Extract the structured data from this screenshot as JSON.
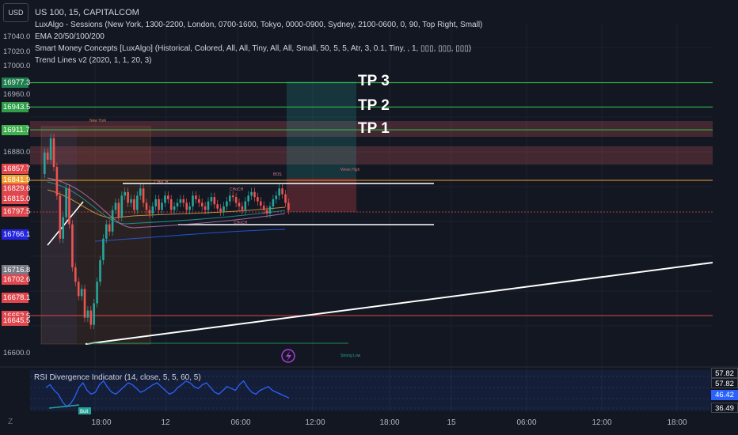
{
  "toolbar": {
    "currency": "USD"
  },
  "legend": {
    "symbol": "US 100, 15, CAPITALCOM",
    "indicators": [
      "LuxAlgo - Sessions (New York, 1300-2200, London, 0700-1600, Tokyo, 0000-0900, Sydney, 2100-0600, 0, 90, Top Right, Small)",
      "EMA 20/50/100/200",
      "Smart Money Concepts [LuxAlgo] (Historical, Colored, All, All, Tiny, All, All, Small, 50, 5, 5, Atr, 3, 0.1, Tiny, , 1, ▯▯▯, ▯▯▯, ▯▯▯)",
      "Trend Lines v2 (2020, 1, 1, 20, 3)"
    ]
  },
  "price_axis": {
    "ticks": [
      "17040.0",
      "17020.0",
      "17000.0",
      "16960.0",
      "16880.0",
      "16600.0"
    ],
    "badges": [
      {
        "value": "16977.3",
        "color": "#1e7e4e"
      },
      {
        "value": "16943.5",
        "color": "#2e9e49"
      },
      {
        "value": "16911.7",
        "color": "#3fb04b"
      },
      {
        "value": "16857.7",
        "color": "#e0474c"
      },
      {
        "value": "16841.9",
        "color": "#f0a02a"
      },
      {
        "value": "16829.6",
        "color": "#e0474c"
      },
      {
        "value": "16815.0",
        "color": "#e0474c"
      },
      {
        "value": "16797.5",
        "color": "#e0474c"
      },
      {
        "value": "16766.1",
        "color": "#2424e0"
      },
      {
        "value": "16716.8",
        "color": "#787b86"
      },
      {
        "value": "16702.6",
        "color": "#e0474c"
      },
      {
        "value": "16678.1",
        "color": "#e0474c"
      },
      {
        "value": "16652.6",
        "color": "#e0474c"
      },
      {
        "value": "16645.5",
        "color": "#e0474c"
      }
    ]
  },
  "targets": [
    "TP 3",
    "TP 2",
    "TP 1"
  ],
  "sessions": {
    "new_york": "New York",
    "high": "Week High",
    "low": "Strong Low"
  },
  "smc_labels": [
    "CHoCH",
    "CHoCH",
    "CHoCH",
    "BOS"
  ],
  "time_axis": [
    "18:00",
    "12",
    "06:00",
    "12:00",
    "18:00",
    "15",
    "06:00",
    "12:00",
    "18:00"
  ],
  "rsi": {
    "title": "RSI Divergence Indicator (14, close, 5, 5, 60, 5)",
    "badges": [
      "57.82",
      "57.82",
      "46.42",
      "36.49"
    ],
    "bull_label": "Bull"
  },
  "colors": {
    "background": "#131722",
    "bull": "#26a69a",
    "bear": "#ef5350",
    "tp_line": "#34c84a"
  }
}
